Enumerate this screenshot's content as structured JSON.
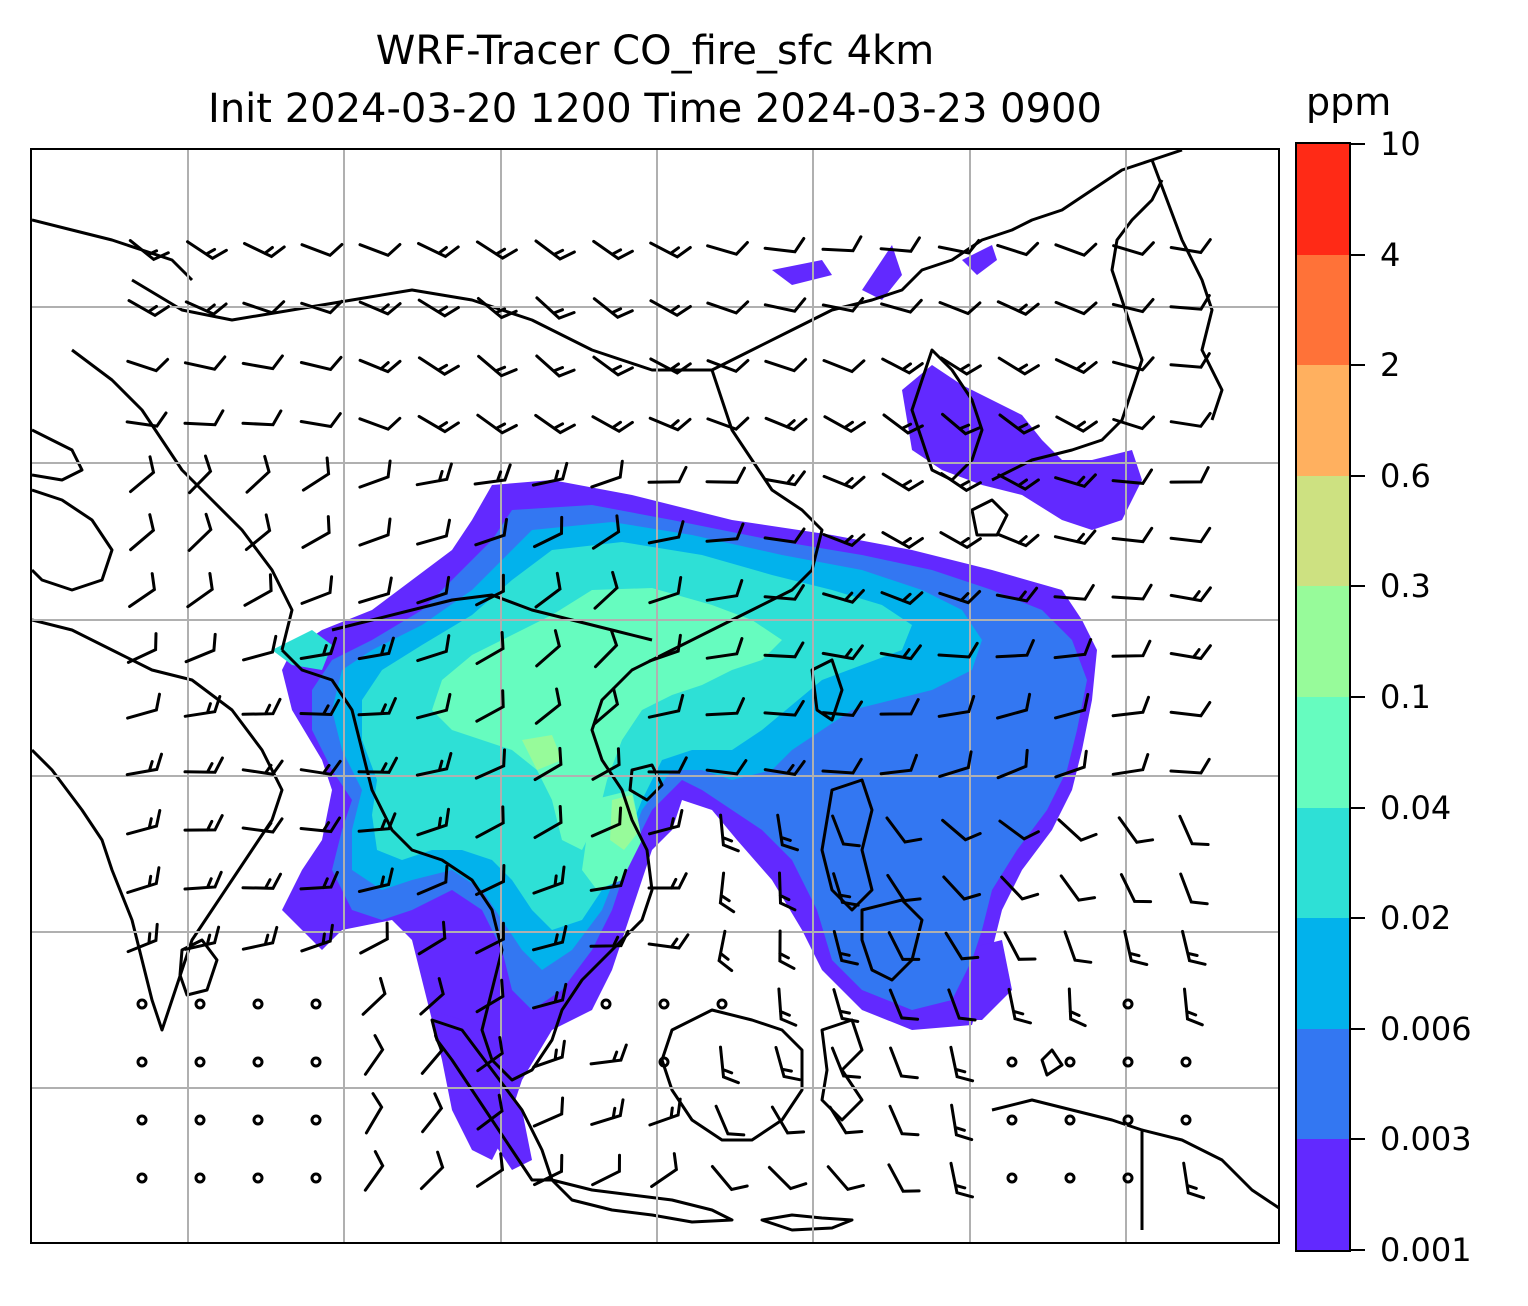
{
  "title": {
    "line1": "WRF-Tracer CO_fire_sfc 4km",
    "line2": "Init 2024-03-20 1200 Time 2024-03-23 0900"
  },
  "colorbar": {
    "unit": "ppm",
    "levels": [
      "0.001",
      "0.003",
      "0.006",
      "0.02",
      "0.04",
      "0.1",
      "0.3",
      "0.6",
      "2",
      "4",
      "10"
    ],
    "colors": [
      "#6229ff",
      "#3377f2",
      "#02b2ec",
      "#2ee0d6",
      "#66fcbf",
      "#97fb9a",
      "#cde181",
      "#ffb05f",
      "#ff7238",
      "#ff2a16"
    ]
  },
  "map": {
    "gridlines": "on",
    "grid_color": "#b0b0b0",
    "coastline_color": "#000000",
    "wind_barbs": "on"
  }
}
